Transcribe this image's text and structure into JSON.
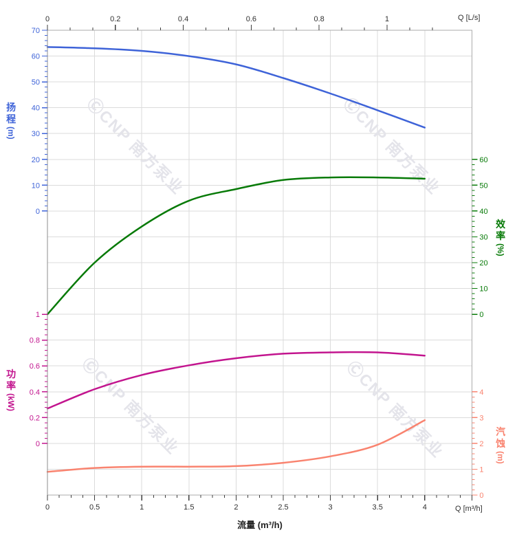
{
  "chart_data": {
    "type": "line",
    "title": "",
    "x_bottom": {
      "title": "流量 (m³/h)",
      "unit_label": "Q [m³/h]",
      "tick_labels": [
        0,
        0.5,
        1,
        1.5,
        2,
        2.5,
        3,
        3.5,
        4
      ],
      "extra_major": 4.5,
      "minor_divisions": 4,
      "range_m3h": [
        0,
        4.5
      ]
    },
    "x_top": {
      "unit_label": "Q [L/s]",
      "tick_labels": [
        0,
        0.2,
        0.4,
        0.6,
        0.8,
        1
      ],
      "minor_divisions": 3,
      "extra_minors": 2,
      "range_ls": [
        0,
        1.25
      ]
    },
    "y_axes": {
      "head": {
        "label": "扬程",
        "unit": "(m)",
        "color": "#3E63D8",
        "ticks": [
          70,
          60,
          50,
          40,
          30,
          20,
          10,
          0
        ],
        "minor_divisions": 5,
        "range": [
          0,
          70
        ]
      },
      "efficiency": {
        "label": "效率",
        "unit": "(%)",
        "color": "#077A07",
        "ticks": [
          60,
          50,
          40,
          30,
          20,
          10,
          0
        ],
        "minor_divisions": 5,
        "range": [
          0,
          60
        ]
      },
      "power": {
        "label": "功率",
        "unit": "(kW)",
        "color": "#C2148E",
        "ticks": [
          1,
          0.8,
          0.6,
          0.4,
          0.2,
          0
        ],
        "minor_divisions": 5,
        "range": [
          0,
          1
        ]
      },
      "npsh": {
        "label": "汽蚀",
        "unit": "(m)",
        "color": "#F9836F",
        "ticks": [
          4,
          3,
          2,
          1,
          0
        ],
        "minor_divisions": 5,
        "range": [
          0,
          4
        ]
      }
    },
    "series": [
      {
        "name": "head",
        "axis": "head",
        "color": "#3E63D8",
        "points_flow_value": [
          [
            0,
            63.5
          ],
          [
            0.5,
            63
          ],
          [
            1,
            62
          ],
          [
            1.5,
            60
          ],
          [
            2,
            56.8
          ],
          [
            2.5,
            51.5
          ],
          [
            3,
            45.5
          ],
          [
            3.5,
            39
          ],
          [
            4,
            32.3
          ]
        ]
      },
      {
        "name": "efficiency",
        "axis": "efficiency",
        "color": "#077A07",
        "points_flow_value": [
          [
            0,
            0
          ],
          [
            0.5,
            20
          ],
          [
            1,
            34
          ],
          [
            1.5,
            44
          ],
          [
            2,
            48.5
          ],
          [
            2.5,
            52
          ],
          [
            3,
            53
          ],
          [
            3.5,
            53
          ],
          [
            4,
            52.5
          ]
        ]
      },
      {
        "name": "power",
        "axis": "power",
        "color": "#C2148E",
        "points_flow_value": [
          [
            0,
            0.27
          ],
          [
            0.5,
            0.42
          ],
          [
            1,
            0.53
          ],
          [
            1.5,
            0.605
          ],
          [
            2,
            0.66
          ],
          [
            2.5,
            0.695
          ],
          [
            3,
            0.705
          ],
          [
            3.5,
            0.705
          ],
          [
            4,
            0.68
          ]
        ]
      },
      {
        "name": "npsh",
        "axis": "npsh",
        "color": "#F9836F",
        "points_flow_value": [
          [
            0,
            0.9
          ],
          [
            0.5,
            1.05
          ],
          [
            1,
            1.1
          ],
          [
            1.5,
            1.1
          ],
          [
            2,
            1.12
          ],
          [
            2.5,
            1.25
          ],
          [
            3,
            1.5
          ],
          [
            3.5,
            1.95
          ],
          [
            4,
            2.9
          ]
        ]
      }
    ],
    "watermark": {
      "text": "ⒸCNP 南方泵业",
      "color": "#E4E4EA"
    },
    "grid": true,
    "legend": "none"
  }
}
